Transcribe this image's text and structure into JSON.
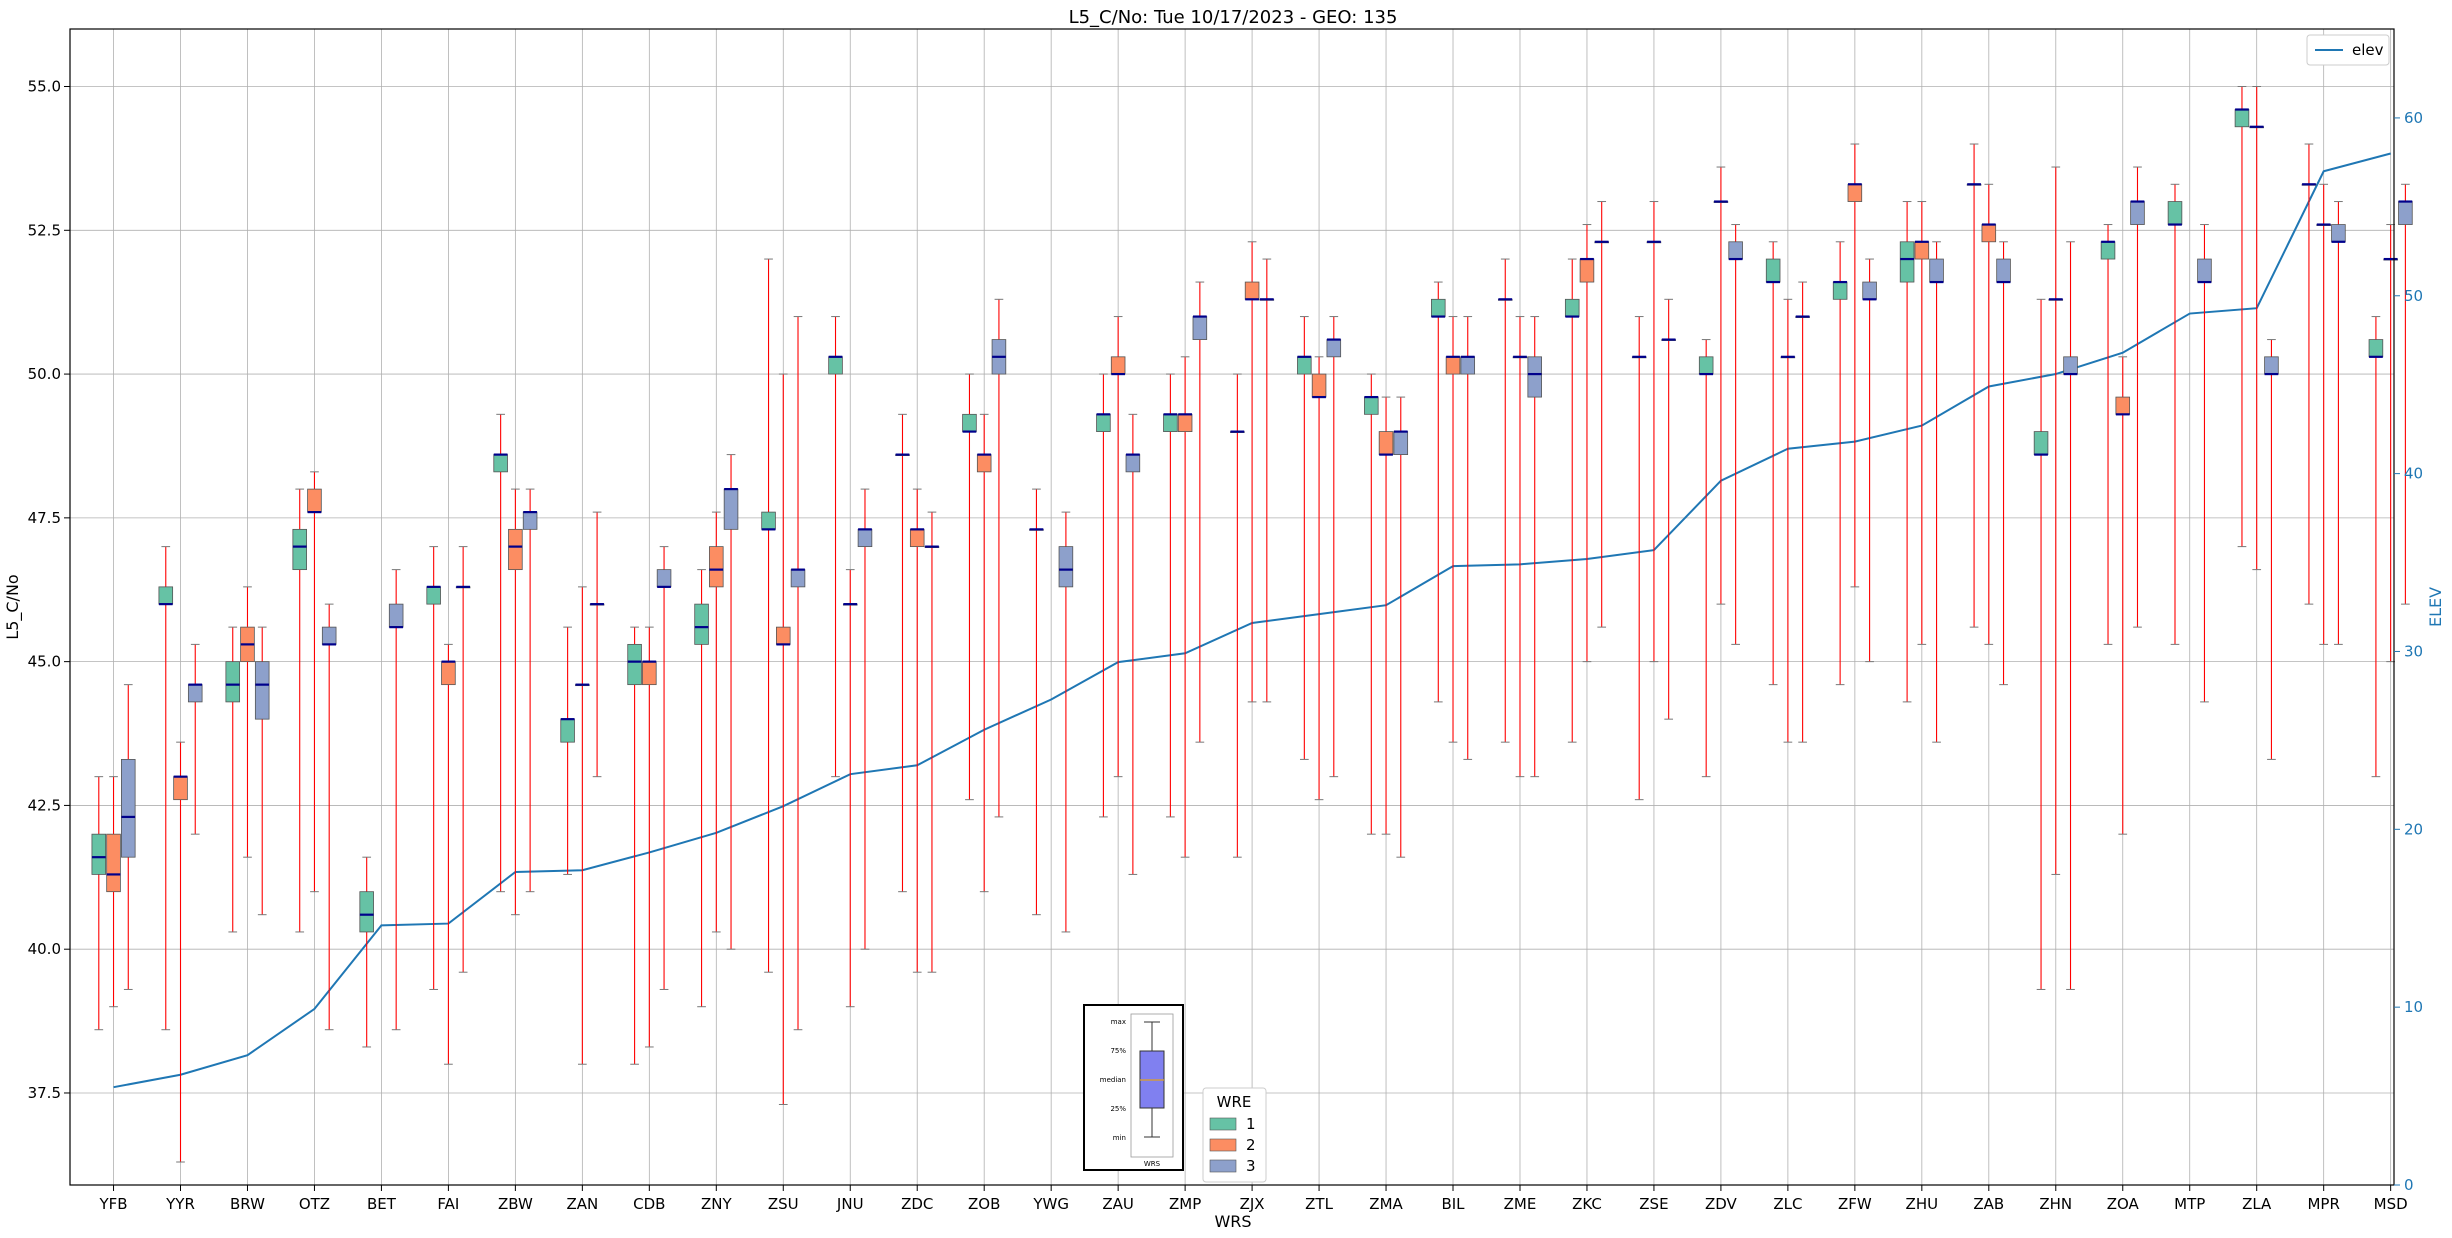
{
  "chart_data": {
    "type": "box",
    "title": "L5_C/No: Tue 10/17/2023 - GEO: 135",
    "xlabel": "WRS",
    "ylabel": "L5_C/No",
    "y2label": "ELEV",
    "ylim": [
      35.9,
      56.0
    ],
    "y2lim": [
      0,
      65
    ],
    "yticks": [
      "37.5",
      "40.0",
      "42.5",
      "45.0",
      "47.5",
      "50.0",
      "52.5",
      "55.0"
    ],
    "y2ticks": [
      "0",
      "10",
      "20",
      "30",
      "40",
      "50",
      "60"
    ],
    "grid": true,
    "colors": {
      "1": "#66c2a5",
      "2": "#fc8d62",
      "3": "#8da0cb",
      "whisker": "#ff0000",
      "median": "#00008b",
      "elev": "#1f77b4"
    },
    "categories": [
      "YFB",
      "YYR",
      "BRW",
      "OTZ",
      "BET",
      "FAI",
      "ZBW",
      "ZAN",
      "CDB",
      "ZNY",
      "ZSU",
      "JNU",
      "ZDC",
      "ZOB",
      "YWG",
      "ZAU",
      "ZMP",
      "ZJX",
      "ZTL",
      "ZMA",
      "BIL",
      "ZME",
      "ZKC",
      "ZSE",
      "ZDV",
      "ZLC",
      "ZFW",
      "ZHU",
      "ZAB",
      "ZHN",
      "ZOA",
      "MTP",
      "ZLA",
      "MPR",
      "MSD"
    ],
    "elev": {
      "name": "elev",
      "legend_position": "upper right",
      "values": [
        5.5,
        6.2,
        7.3,
        9.9,
        14.6,
        14.7,
        17.6,
        17.7,
        18.7,
        19.8,
        21.3,
        23.1,
        23.6,
        25.6,
        27.3,
        29.4,
        29.9,
        31.6,
        32.1,
        32.6,
        34.8,
        34.9,
        35.2,
        35.7,
        39.6,
        41.4,
        41.8,
        42.7,
        44.9,
        45.6,
        46.8,
        49.0,
        49.3,
        57.0,
        58.0
      ]
    },
    "wre_legend": {
      "title": "WRE",
      "labels": [
        "1",
        "2",
        "3"
      ]
    },
    "inset_legend": {
      "labels": [
        "max",
        "75%",
        "median",
        "25%",
        "min"
      ],
      "xlabel": "WRS"
    },
    "boxes": [
      {
        "cat": "YFB",
        "wre": "1",
        "min": 38.6,
        "q1": 41.3,
        "median": 41.6,
        "q3": 42.0,
        "max": 43.0
      },
      {
        "cat": "YFB",
        "wre": "2",
        "min": 39.0,
        "q1": 41.0,
        "median": 41.3,
        "q3": 42.0,
        "max": 43.0
      },
      {
        "cat": "YFB",
        "wre": "3",
        "min": 39.3,
        "q1": 41.6,
        "median": 42.3,
        "q3": 43.3,
        "max": 44.6
      },
      {
        "cat": "YYR",
        "wre": "1",
        "min": 38.6,
        "q1": 46.0,
        "median": 46.0,
        "q3": 46.3,
        "max": 47.0
      },
      {
        "cat": "YYR",
        "wre": "2",
        "min": 36.3,
        "q1": 42.6,
        "median": 43.0,
        "q3": 43.0,
        "max": 43.6
      },
      {
        "cat": "YYR",
        "wre": "3",
        "min": 42.0,
        "q1": 44.3,
        "median": 44.6,
        "q3": 44.6,
        "max": 45.3
      },
      {
        "cat": "BRW",
        "wre": "1",
        "min": 40.3,
        "q1": 44.3,
        "median": 44.6,
        "q3": 45.0,
        "max": 45.6
      },
      {
        "cat": "BRW",
        "wre": "2",
        "min": 41.6,
        "q1": 45.0,
        "median": 45.3,
        "q3": 45.6,
        "max": 46.3
      },
      {
        "cat": "BRW",
        "wre": "3",
        "min": 40.6,
        "q1": 44.0,
        "median": 44.6,
        "q3": 45.0,
        "max": 45.6
      },
      {
        "cat": "OTZ",
        "wre": "1",
        "min": 40.3,
        "q1": 46.6,
        "median": 47.0,
        "q3": 47.3,
        "max": 48.0
      },
      {
        "cat": "OTZ",
        "wre": "2",
        "min": 41.0,
        "q1": 47.6,
        "median": 47.6,
        "q3": 48.0,
        "max": 48.3
      },
      {
        "cat": "OTZ",
        "wre": "3",
        "min": 38.6,
        "q1": 45.3,
        "median": 45.3,
        "q3": 45.6,
        "max": 46.0
      },
      {
        "cat": "BET",
        "wre": "1",
        "min": 38.3,
        "q1": 40.3,
        "median": 40.6,
        "q3": 41.0,
        "max": 41.6
      },
      {
        "cat": "BET",
        "wre": "3",
        "min": 38.6,
        "q1": 45.6,
        "median": 45.6,
        "q3": 46.0,
        "max": 46.6
      },
      {
        "cat": "FAI",
        "wre": "1",
        "min": 39.3,
        "q1": 46.0,
        "median": 46.3,
        "q3": 46.3,
        "max": 47.0
      },
      {
        "cat": "FAI",
        "wre": "2",
        "min": 38.0,
        "q1": 44.6,
        "median": 45.0,
        "q3": 45.0,
        "max": 45.3
      },
      {
        "cat": "FAI",
        "wre": "3",
        "min": 39.6,
        "q1": 46.3,
        "median": 46.3,
        "q3": 46.3,
        "max": 47.0
      },
      {
        "cat": "ZBW",
        "wre": "1",
        "min": 41.0,
        "q1": 48.3,
        "median": 48.6,
        "q3": 48.6,
        "max": 49.3
      },
      {
        "cat": "ZBW",
        "wre": "2",
        "min": 40.6,
        "q1": 46.6,
        "median": 47.0,
        "q3": 47.3,
        "max": 48.0
      },
      {
        "cat": "ZBW",
        "wre": "3",
        "min": 41.0,
        "q1": 47.3,
        "median": 47.6,
        "q3": 47.6,
        "max": 48.0
      },
      {
        "cat": "ZAN",
        "wre": "1",
        "min": 41.3,
        "q1": 43.6,
        "median": 44.0,
        "q3": 44.0,
        "max": 45.6
      },
      {
        "cat": "ZAN",
        "wre": "2",
        "min": 38.0,
        "q1": 44.6,
        "median": 44.6,
        "q3": 44.6,
        "max": 46.3
      },
      {
        "cat": "ZAN",
        "wre": "3",
        "min": 43.0,
        "q1": 46.0,
        "median": 46.0,
        "q3": 46.0,
        "max": 47.6
      },
      {
        "cat": "CDB",
        "wre": "1",
        "min": 38.0,
        "q1": 44.6,
        "median": 45.0,
        "q3": 45.3,
        "max": 45.6
      },
      {
        "cat": "CDB",
        "wre": "2",
        "min": 38.3,
        "q1": 44.6,
        "median": 45.0,
        "q3": 45.0,
        "max": 45.6
      },
      {
        "cat": "CDB",
        "wre": "3",
        "min": 39.3,
        "q1": 46.3,
        "median": 46.3,
        "q3": 46.6,
        "max": 47.0
      },
      {
        "cat": "ZNY",
        "wre": "1",
        "min": 39.0,
        "q1": 45.3,
        "median": 45.6,
        "q3": 46.0,
        "max": 46.6
      },
      {
        "cat": "ZNY",
        "wre": "2",
        "min": 40.3,
        "q1": 46.3,
        "median": 46.6,
        "q3": 47.0,
        "max": 47.6
      },
      {
        "cat": "ZNY",
        "wre": "3",
        "min": 40.0,
        "q1": 47.3,
        "median": 48.0,
        "q3": 48.0,
        "max": 48.6
      },
      {
        "cat": "ZSU",
        "wre": "1",
        "min": 39.6,
        "q1": 47.3,
        "median": 47.3,
        "q3": 47.6,
        "max": 52.0
      },
      {
        "cat": "ZSU",
        "wre": "2",
        "min": 37.3,
        "q1": 45.3,
        "median": 45.3,
        "q3": 45.6,
        "max": 50.0
      },
      {
        "cat": "ZSU",
        "wre": "3",
        "min": 38.6,
        "q1": 46.3,
        "median": 46.6,
        "q3": 46.6,
        "max": 51.0
      },
      {
        "cat": "JNU",
        "wre": "1",
        "min": 43.0,
        "q1": 50.0,
        "median": 50.3,
        "q3": 50.3,
        "max": 51.0
      },
      {
        "cat": "JNU",
        "wre": "2",
        "min": 39.0,
        "q1": 46.0,
        "median": 46.0,
        "q3": 46.0,
        "max": 46.6
      },
      {
        "cat": "JNU",
        "wre": "3",
        "min": 40.0,
        "q1": 47.0,
        "median": 47.3,
        "q3": 47.3,
        "max": 48.0
      },
      {
        "cat": "ZDC",
        "wre": "1",
        "min": 41.0,
        "q1": 48.6,
        "median": 48.6,
        "q3": 48.6,
        "max": 49.3
      },
      {
        "cat": "ZDC",
        "wre": "2",
        "min": 39.6,
        "q1": 47.0,
        "median": 47.3,
        "q3": 47.3,
        "max": 48.0
      },
      {
        "cat": "ZDC",
        "wre": "3",
        "min": 39.6,
        "q1": 47.0,
        "median": 47.0,
        "q3": 47.0,
        "max": 47.6
      },
      {
        "cat": "ZOB",
        "wre": "1",
        "min": 42.6,
        "q1": 49.0,
        "median": 49.0,
        "q3": 49.3,
        "max": 50.0
      },
      {
        "cat": "ZOB",
        "wre": "2",
        "min": 41.0,
        "q1": 48.3,
        "median": 48.6,
        "q3": 48.6,
        "max": 49.3
      },
      {
        "cat": "ZOB",
        "wre": "3",
        "min": 42.3,
        "q1": 50.0,
        "median": 50.3,
        "q3": 50.6,
        "max": 51.3
      },
      {
        "cat": "YWG",
        "wre": "1",
        "min": 40.6,
        "q1": 47.3,
        "median": 47.3,
        "q3": 47.3,
        "max": 48.0
      },
      {
        "cat": "YWG",
        "wre": "3",
        "min": 40.3,
        "q1": 46.3,
        "median": 46.6,
        "q3": 47.0,
        "max": 47.6
      },
      {
        "cat": "ZAU",
        "wre": "1",
        "min": 42.3,
        "q1": 49.0,
        "median": 49.3,
        "q3": 49.3,
        "max": 50.0
      },
      {
        "cat": "ZAU",
        "wre": "2",
        "min": 43.0,
        "q1": 50.0,
        "median": 50.0,
        "q3": 50.3,
        "max": 51.0
      },
      {
        "cat": "ZAU",
        "wre": "3",
        "min": 41.3,
        "q1": 48.3,
        "median": 48.6,
        "q3": 48.6,
        "max": 49.3
      },
      {
        "cat": "ZMP",
        "wre": "1",
        "min": 42.3,
        "q1": 49.0,
        "median": 49.3,
        "q3": 49.3,
        "max": 50.0
      },
      {
        "cat": "ZMP",
        "wre": "2",
        "min": 41.6,
        "q1": 49.0,
        "median": 49.3,
        "q3": 49.3,
        "max": 50.3
      },
      {
        "cat": "ZMP",
        "wre": "3",
        "min": 43.6,
        "q1": 50.6,
        "median": 51.0,
        "q3": 51.0,
        "max": 51.6
      },
      {
        "cat": "ZJX",
        "wre": "1",
        "min": 41.6,
        "q1": 49.0,
        "median": 49.0,
        "q3": 49.0,
        "max": 50.0
      },
      {
        "cat": "ZJX",
        "wre": "2",
        "min": 44.3,
        "q1": 51.3,
        "median": 51.3,
        "q3": 51.6,
        "max": 52.3
      },
      {
        "cat": "ZJX",
        "wre": "3",
        "min": 44.3,
        "q1": 51.3,
        "median": 51.3,
        "q3": 51.3,
        "max": 52.0
      },
      {
        "cat": "ZTL",
        "wre": "1",
        "min": 43.3,
        "q1": 50.0,
        "median": 50.3,
        "q3": 50.3,
        "max": 51.0
      },
      {
        "cat": "ZTL",
        "wre": "2",
        "min": 42.6,
        "q1": 49.6,
        "median": 49.6,
        "q3": 50.0,
        "max": 50.3
      },
      {
        "cat": "ZTL",
        "wre": "3",
        "min": 43.0,
        "q1": 50.3,
        "median": 50.6,
        "q3": 50.6,
        "max": 51.0
      },
      {
        "cat": "ZMA",
        "wre": "1",
        "min": 42.0,
        "q1": 49.3,
        "median": 49.6,
        "q3": 49.6,
        "max": 50.0
      },
      {
        "cat": "ZMA",
        "wre": "2",
        "min": 42.0,
        "q1": 48.6,
        "median": 48.6,
        "q3": 49.0,
        "max": 49.6
      },
      {
        "cat": "ZMA",
        "wre": "3",
        "min": 41.6,
        "q1": 48.6,
        "median": 49.0,
        "q3": 49.0,
        "max": 49.6
      },
      {
        "cat": "BIL",
        "wre": "1",
        "min": 44.3,
        "q1": 51.0,
        "median": 51.0,
        "q3": 51.3,
        "max": 51.6
      },
      {
        "cat": "BIL",
        "wre": "2",
        "min": 43.6,
        "q1": 50.0,
        "median": 50.3,
        "q3": 50.3,
        "max": 51.0
      },
      {
        "cat": "BIL",
        "wre": "3",
        "min": 43.3,
        "q1": 50.0,
        "median": 50.3,
        "q3": 50.3,
        "max": 51.0
      },
      {
        "cat": "ZME",
        "wre": "1",
        "min": 43.6,
        "q1": 51.3,
        "median": 51.3,
        "q3": 51.3,
        "max": 52.0
      },
      {
        "cat": "ZME",
        "wre": "2",
        "min": 43.0,
        "q1": 50.3,
        "median": 50.3,
        "q3": 50.3,
        "max": 51.0
      },
      {
        "cat": "ZME",
        "wre": "3",
        "min": 43.0,
        "q1": 49.6,
        "median": 50.0,
        "q3": 50.3,
        "max": 51.0
      },
      {
        "cat": "ZKC",
        "wre": "1",
        "min": 43.6,
        "q1": 51.0,
        "median": 51.0,
        "q3": 51.3,
        "max": 52.0
      },
      {
        "cat": "ZKC",
        "wre": "2",
        "min": 45.0,
        "q1": 51.6,
        "median": 52.0,
        "q3": 52.0,
        "max": 52.6
      },
      {
        "cat": "ZKC",
        "wre": "3",
        "min": 45.6,
        "q1": 52.3,
        "median": 52.3,
        "q3": 52.3,
        "max": 53.0
      },
      {
        "cat": "ZSE",
        "wre": "1",
        "min": 42.6,
        "q1": 50.3,
        "median": 50.3,
        "q3": 50.3,
        "max": 51.0
      },
      {
        "cat": "ZSE",
        "wre": "2",
        "min": 45.0,
        "q1": 52.3,
        "median": 52.3,
        "q3": 52.3,
        "max": 53.0
      },
      {
        "cat": "ZSE",
        "wre": "3",
        "min": 44.0,
        "q1": 50.6,
        "median": 50.6,
        "q3": 50.6,
        "max": 51.3
      },
      {
        "cat": "ZDV",
        "wre": "1",
        "min": 43.0,
        "q1": 50.0,
        "median": 50.0,
        "q3": 50.3,
        "max": 50.6
      },
      {
        "cat": "ZDV",
        "wre": "2",
        "min": 46.0,
        "q1": 53.0,
        "median": 53.0,
        "q3": 53.0,
        "max": 53.6
      },
      {
        "cat": "ZDV",
        "wre": "3",
        "min": 45.3,
        "q1": 52.0,
        "median": 52.0,
        "q3": 52.3,
        "max": 52.6
      },
      {
        "cat": "ZLC",
        "wre": "1",
        "min": 44.6,
        "q1": 51.6,
        "median": 51.6,
        "q3": 52.0,
        "max": 52.3
      },
      {
        "cat": "ZLC",
        "wre": "2",
        "min": 43.6,
        "q1": 50.3,
        "median": 50.3,
        "q3": 50.3,
        "max": 51.3
      },
      {
        "cat": "ZLC",
        "wre": "3",
        "min": 43.6,
        "q1": 51.0,
        "median": 51.0,
        "q3": 51.0,
        "max": 51.6
      },
      {
        "cat": "ZFW",
        "wre": "1",
        "min": 44.6,
        "q1": 51.3,
        "median": 51.6,
        "q3": 51.6,
        "max": 52.3
      },
      {
        "cat": "ZFW",
        "wre": "2",
        "min": 46.3,
        "q1": 53.0,
        "median": 53.3,
        "q3": 53.3,
        "max": 54.0
      },
      {
        "cat": "ZFW",
        "wre": "3",
        "min": 45.0,
        "q1": 51.3,
        "median": 51.3,
        "q3": 51.6,
        "max": 52.0
      },
      {
        "cat": "ZHU",
        "wre": "1",
        "min": 44.3,
        "q1": 51.6,
        "median": 52.0,
        "q3": 52.3,
        "max": 53.0
      },
      {
        "cat": "ZHU",
        "wre": "2",
        "min": 45.3,
        "q1": 52.0,
        "median": 52.3,
        "q3": 52.3,
        "max": 53.0
      },
      {
        "cat": "ZHU",
        "wre": "3",
        "min": 43.6,
        "q1": 51.6,
        "median": 51.6,
        "q3": 52.0,
        "max": 52.3
      },
      {
        "cat": "ZAB",
        "wre": "1",
        "min": 45.6,
        "q1": 53.3,
        "median": 53.3,
        "q3": 53.3,
        "max": 54.0
      },
      {
        "cat": "ZAB",
        "wre": "2",
        "min": 45.3,
        "q1": 52.3,
        "median": 52.6,
        "q3": 52.6,
        "max": 53.3
      },
      {
        "cat": "ZAB",
        "wre": "3",
        "min": 44.6,
        "q1": 51.6,
        "median": 51.6,
        "q3": 52.0,
        "max": 52.3
      },
      {
        "cat": "ZHN",
        "wre": "1",
        "min": 39.3,
        "q1": 48.6,
        "median": 48.6,
        "q3": 49.0,
        "max": 51.3
      },
      {
        "cat": "ZHN",
        "wre": "2",
        "min": 41.3,
        "q1": 51.3,
        "median": 51.3,
        "q3": 51.3,
        "max": 53.6
      },
      {
        "cat": "ZHN",
        "wre": "3",
        "min": 39.3,
        "q1": 50.0,
        "median": 50.0,
        "q3": 50.3,
        "max": 52.3
      },
      {
        "cat": "ZOA",
        "wre": "1",
        "min": 45.3,
        "q1": 52.0,
        "median": 52.3,
        "q3": 52.3,
        "max": 52.6
      },
      {
        "cat": "ZOA",
        "wre": "2",
        "min": 42.0,
        "q1": 49.3,
        "median": 49.3,
        "q3": 49.6,
        "max": 50.3
      },
      {
        "cat": "ZOA",
        "wre": "3",
        "min": 45.6,
        "q1": 52.6,
        "median": 53.0,
        "q3": 53.0,
        "max": 53.6
      },
      {
        "cat": "MTP",
        "wre": "1",
        "min": 45.3,
        "q1": 52.6,
        "median": 52.6,
        "q3": 53.0,
        "max": 53.3
      },
      {
        "cat": "MTP",
        "wre": "3",
        "min": 44.3,
        "q1": 51.6,
        "median": 51.6,
        "q3": 52.0,
        "max": 52.6
      },
      {
        "cat": "ZLA",
        "wre": "1",
        "min": 47.0,
        "q1": 54.3,
        "median": 54.6,
        "q3": 54.6,
        "max": 55.0
      },
      {
        "cat": "ZLA",
        "wre": "2",
        "min": 46.6,
        "q1": 54.3,
        "median": 54.3,
        "q3": 54.3,
        "max": 55.0
      },
      {
        "cat": "ZLA",
        "wre": "3",
        "min": 43.3,
        "q1": 50.0,
        "median": 50.0,
        "q3": 50.3,
        "max": 50.6
      },
      {
        "cat": "MPR",
        "wre": "1",
        "min": 46.0,
        "q1": 53.3,
        "median": 53.3,
        "q3": 53.3,
        "max": 54.0
      },
      {
        "cat": "MPR",
        "wre": "2",
        "min": 45.3,
        "q1": 52.6,
        "median": 52.6,
        "q3": 52.6,
        "max": 53.3
      },
      {
        "cat": "MPR",
        "wre": "3",
        "min": 45.3,
        "q1": 52.3,
        "median": 52.3,
        "q3": 52.6,
        "max": 53.0
      },
      {
        "cat": "MSD",
        "wre": "1",
        "min": 43.0,
        "q1": 50.3,
        "median": 50.3,
        "q3": 50.6,
        "max": 51.0
      },
      {
        "cat": "MSD",
        "wre": "2",
        "min": 45.0,
        "q1": 52.0,
        "median": 52.0,
        "q3": 52.0,
        "max": 52.6
      },
      {
        "cat": "MSD",
        "wre": "3",
        "min": 46.0,
        "q1": 52.6,
        "median": 53.0,
        "q3": 53.0,
        "max": 53.3
      }
    ]
  }
}
